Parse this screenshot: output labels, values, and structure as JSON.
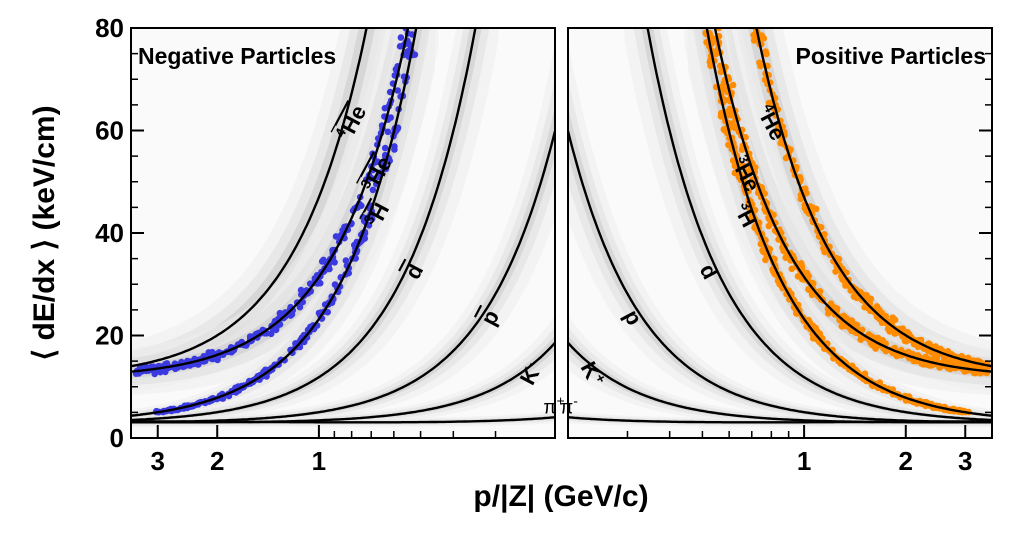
{
  "chart_data": {
    "type": "scatter",
    "ylabel": "⟨ dE/dx ⟩ (keV/cm)",
    "xlabel": "p/|Z| (GeV/c)",
    "ylim": [
      0,
      80
    ],
    "yticks": [
      "0",
      "20",
      "40",
      "60",
      "80"
    ],
    "panels": [
      {
        "name": "negative",
        "title": "Negative Particles",
        "x_ticks": [
          "3",
          "2",
          "1"
        ],
        "x_tick_values": [
          3,
          2,
          1
        ],
        "x_direction": "reversed",
        "xlim": [
          0.2,
          3.6
        ],
        "highlight_color": "#3a3ae0",
        "highlight_species": [
          "anti-3He",
          "anti-3H"
        ],
        "curves": [
          {
            "label": "4He-bar",
            "text": "He",
            "prefix": "4",
            "bar": true,
            "mass": 3.727,
            "z": 2
          },
          {
            "label": "3He-bar",
            "text": "He",
            "prefix": "3",
            "bar": true,
            "mass": 2.809,
            "z": 2
          },
          {
            "label": "3H-bar",
            "text": "H",
            "prefix": "3",
            "bar": true,
            "mass": 2.809,
            "z": 1
          },
          {
            "label": "d-bar",
            "text": "d",
            "prefix": "",
            "bar": true,
            "mass": 1.876,
            "z": 1
          },
          {
            "label": "p-bar",
            "text": "p",
            "prefix": "",
            "bar": true,
            "mass": 0.938,
            "z": 1
          },
          {
            "label": "K-",
            "text": "K",
            "sup": "-",
            "mass": 0.494,
            "z": 1
          },
          {
            "label": "pi-",
            "text": "π",
            "sup": "-",
            "mass": 0.14,
            "z": 1
          }
        ]
      },
      {
        "name": "positive",
        "title": "Positive Particles",
        "x_ticks": [
          "1",
          "2",
          "3"
        ],
        "x_tick_values": [
          1,
          2,
          3
        ],
        "x_direction": "normal",
        "xlim": [
          0.2,
          3.6
        ],
        "highlight_color": "#ff8c00",
        "highlight_species": [
          "3He",
          "3H",
          "4He"
        ],
        "curves": [
          {
            "label": "4He",
            "text": "He",
            "prefix": "4",
            "mass": 3.727,
            "z": 2
          },
          {
            "label": "3He",
            "text": "He",
            "prefix": "3",
            "mass": 2.809,
            "z": 2
          },
          {
            "label": "3H",
            "text": "H",
            "prefix": "3",
            "mass": 2.809,
            "z": 1
          },
          {
            "label": "d",
            "text": "d",
            "prefix": "",
            "mass": 1.876,
            "z": 1
          },
          {
            "label": "p",
            "text": "p",
            "prefix": "",
            "mass": 0.938,
            "z": 1
          },
          {
            "label": "K+",
            "text": "K",
            "sup": "+",
            "mass": 0.494,
            "z": 1
          },
          {
            "label": "pi+",
            "text": "π",
            "sup": "+",
            "mass": 0.14,
            "z": 1
          }
        ]
      }
    ]
  }
}
